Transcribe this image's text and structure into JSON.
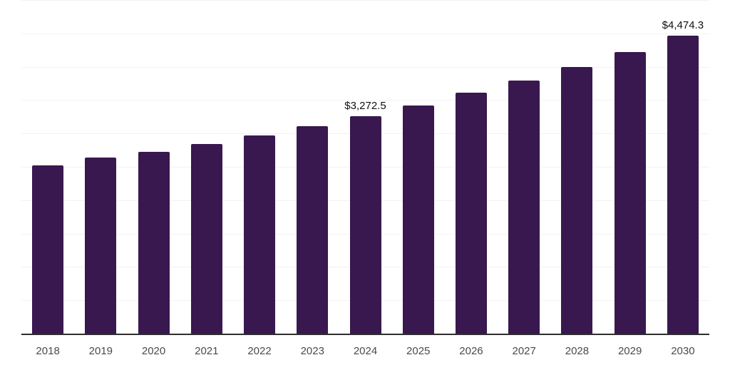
{
  "chart_data": {
    "type": "bar",
    "title": "",
    "xlabel": "",
    "ylabel": "",
    "categories": [
      "2018",
      "2019",
      "2020",
      "2021",
      "2022",
      "2023",
      "2024",
      "2025",
      "2026",
      "2027",
      "2028",
      "2029",
      "2030"
    ],
    "values": [
      2530,
      2650,
      2735,
      2850,
      2980,
      3120,
      3272.5,
      3430,
      3620,
      3805,
      4010,
      4230,
      4474.3
    ],
    "data_labels": {
      "2024": "$3,272.5",
      "2030": "$4,474.3"
    },
    "ylim": [
      0,
      5000
    ],
    "grid_step": 500,
    "grid": "horizontal-only",
    "legend": "none",
    "colors": {
      "bar": "#38184f",
      "gridline": "#f2f2f2",
      "axis_line": "#2e2e2e",
      "tick_label": "#4a4a4a",
      "data_label": "#111111",
      "background": "#ffffff"
    }
  }
}
